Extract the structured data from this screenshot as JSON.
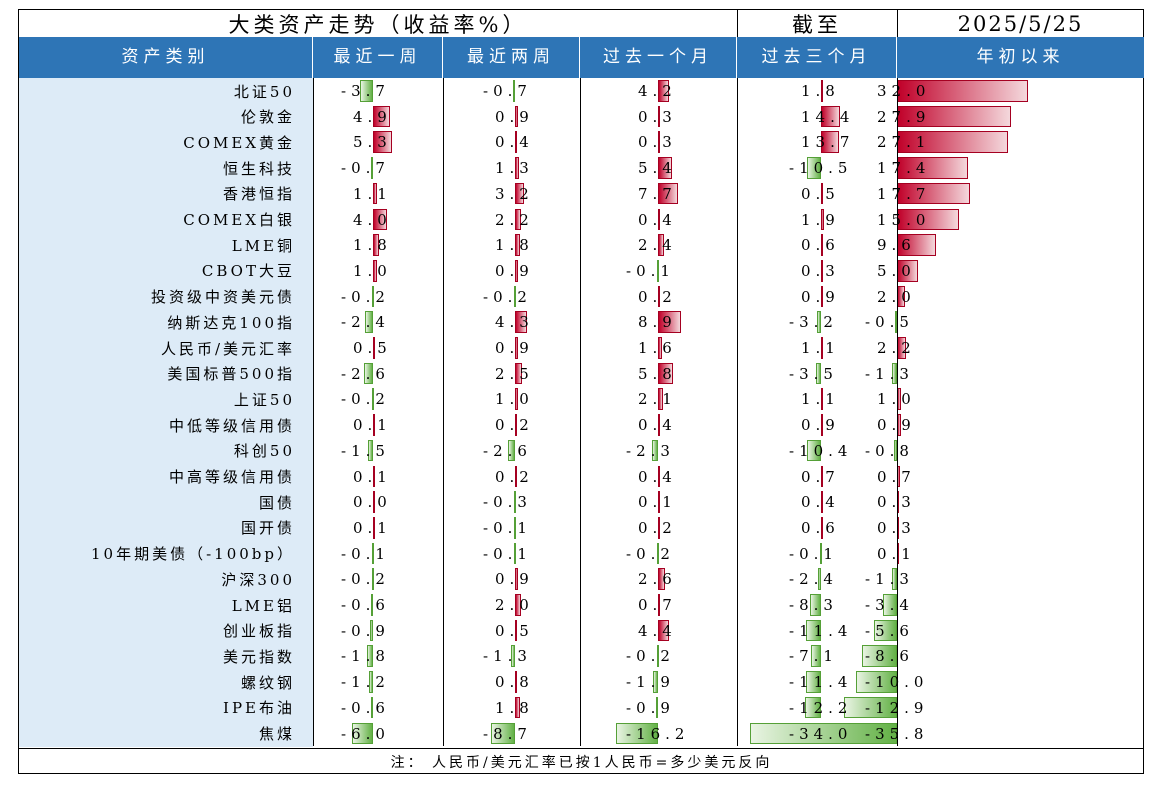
{
  "title": "大类资产走势（收益率%）",
  "as_of_label": "截至",
  "as_of_date": "2025/5/25",
  "headers": [
    "资产类别",
    "最近一周",
    "最近两周",
    "过去一个月",
    "过去三个月",
    "年初以来"
  ],
  "note": "注： 人民币/美元汇率已按1人民币=多少美元反向",
  "colors": {
    "header_bg": "#2e75b6",
    "name_bg": "#ddebf7",
    "positive": "#c00029",
    "negative": "#63b146"
  },
  "chart_data": {
    "type": "table",
    "title": "大类资产走势（收益率%）",
    "columns": [
      "最近一周",
      "最近两周",
      "过去一个月",
      "过去三个月",
      "年初以来"
    ],
    "rows": [
      {
        "name": "北证50",
        "values": [
          -3.7,
          -0.7,
          4.2,
          1.8,
          32.0
        ]
      },
      {
        "name": "伦敦金",
        "values": [
          4.9,
          0.9,
          0.3,
          14.4,
          27.9
        ]
      },
      {
        "name": "COMEX黄金",
        "values": [
          5.3,
          0.4,
          0.3,
          13.7,
          27.1
        ]
      },
      {
        "name": "恒生科技",
        "values": [
          -0.7,
          1.3,
          5.4,
          -10.5,
          17.4
        ]
      },
      {
        "name": "香港恒指",
        "values": [
          1.1,
          3.2,
          7.7,
          0.5,
          17.7
        ]
      },
      {
        "name": "COMEX白银",
        "values": [
          4.0,
          2.2,
          0.4,
          1.9,
          15.0
        ]
      },
      {
        "name": "LME铜",
        "values": [
          1.8,
          1.8,
          2.4,
          0.6,
          9.6
        ]
      },
      {
        "name": "CBOT大豆",
        "values": [
          1.0,
          0.9,
          -0.1,
          0.3,
          5.0
        ]
      },
      {
        "name": "投资级中资美元债",
        "values": [
          -0.2,
          -0.2,
          0.2,
          0.9,
          2.0
        ]
      },
      {
        "name": "纳斯达克100指",
        "values": [
          -2.4,
          4.3,
          8.9,
          -3.2,
          -0.5
        ]
      },
      {
        "name": "人民币/美元汇率",
        "values": [
          0.5,
          0.9,
          1.6,
          1.1,
          2.2
        ]
      },
      {
        "name": "美国标普500指",
        "values": [
          -2.6,
          2.5,
          5.8,
          -3.5,
          -1.3
        ]
      },
      {
        "name": "上证50",
        "values": [
          -0.2,
          1.0,
          2.1,
          1.1,
          1.0
        ]
      },
      {
        "name": "中低等级信用债",
        "values": [
          0.1,
          0.2,
          0.4,
          0.9,
          0.9
        ]
      },
      {
        "name": "科创50",
        "values": [
          -1.5,
          -2.6,
          -2.3,
          -10.4,
          -0.8
        ]
      },
      {
        "name": "中高等级信用债",
        "values": [
          0.1,
          0.2,
          0.4,
          0.7,
          0.7
        ]
      },
      {
        "name": "国债",
        "values": [
          0.0,
          -0.3,
          0.1,
          0.4,
          0.3
        ]
      },
      {
        "name": "国开债",
        "values": [
          0.1,
          -0.1,
          0.2,
          0.6,
          0.3
        ]
      },
      {
        "name": "10年期美债（-100bp）",
        "values": [
          -0.1,
          -0.1,
          -0.2,
          -0.1,
          0.1
        ]
      },
      {
        "name": "沪深300",
        "values": [
          -0.2,
          0.9,
          2.6,
          -2.4,
          -1.3
        ]
      },
      {
        "name": "LME铝",
        "values": [
          -0.6,
          2.0,
          0.7,
          -8.3,
          -3.4
        ]
      },
      {
        "name": "创业板指",
        "values": [
          -0.9,
          0.5,
          4.4,
          -11.4,
          -5.6
        ]
      },
      {
        "name": "美元指数",
        "values": [
          -1.8,
          -1.3,
          -0.2,
          -7.1,
          -8.6
        ]
      },
      {
        "name": "螺纹钢",
        "values": [
          -1.2,
          0.8,
          -1.9,
          -11.4,
          -10.0
        ]
      },
      {
        "name": "IPE布油",
        "values": [
          -0.6,
          1.8,
          -0.9,
          -12.2,
          -12.9
        ]
      },
      {
        "name": "焦煤",
        "values": [
          -6.0,
          -8.7,
          -16.2,
          -34.0,
          -35.8
        ]
      }
    ]
  }
}
